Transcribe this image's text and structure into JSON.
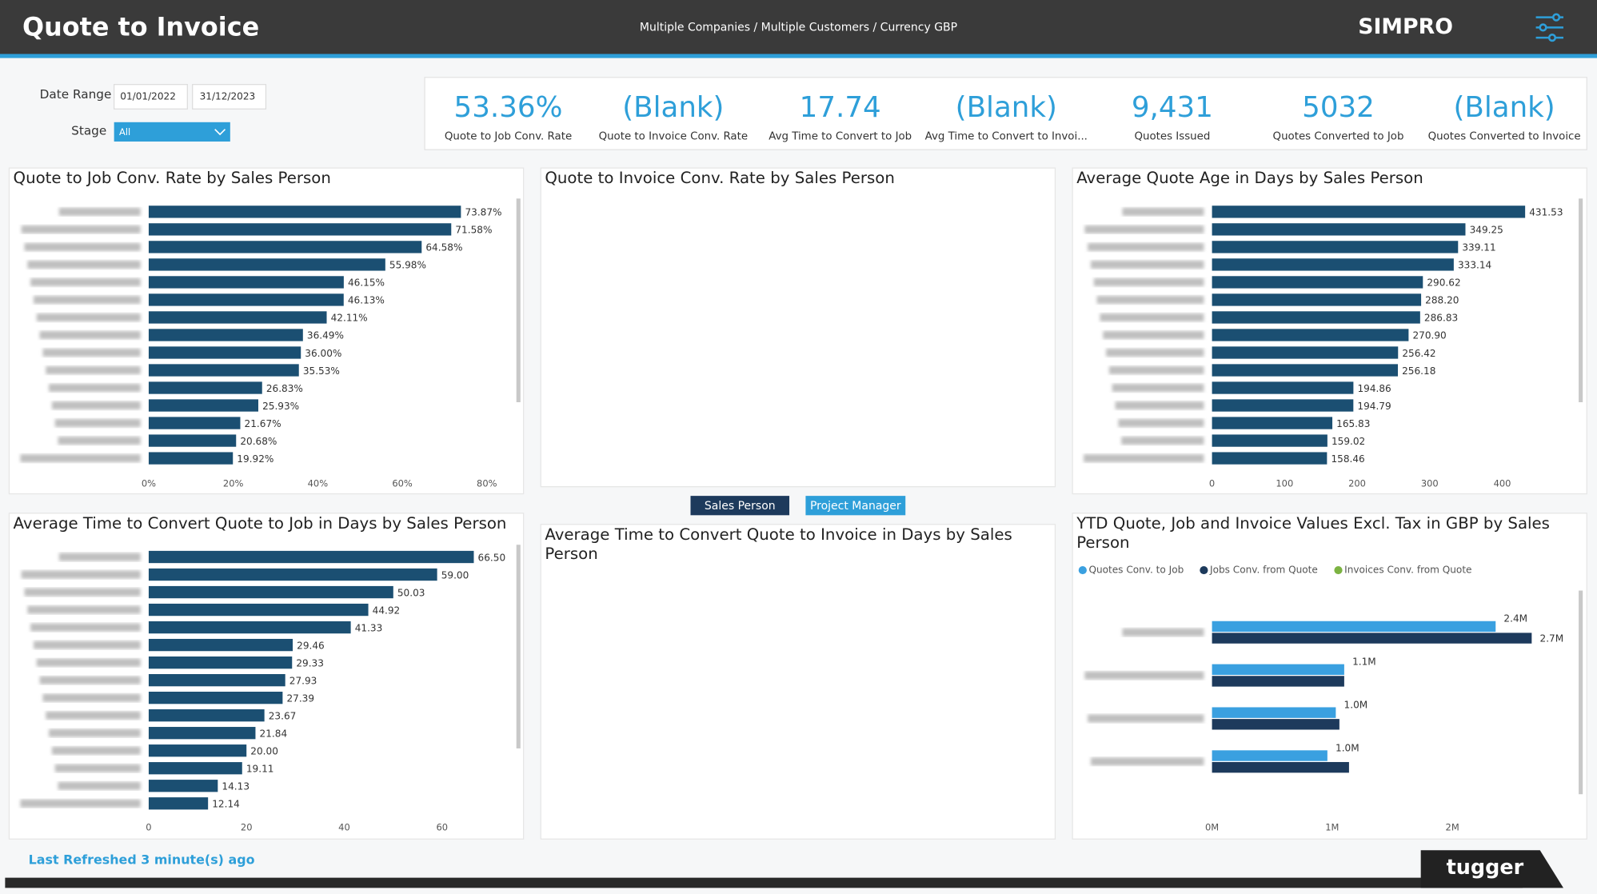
{
  "header": {
    "title": "Quote to Invoice",
    "context": "Multiple Companies / Multiple Customers /  Currency GBP",
    "brand": "SIMPRO"
  },
  "filters": {
    "date_label": "Date Range",
    "date_from": "01/01/2022",
    "date_to": "31/12/2023",
    "stage_label": "Stage",
    "stage_value": "All"
  },
  "kpis": [
    {
      "value": "53.36%",
      "label": "Quote to Job Conv. Rate"
    },
    {
      "value": "(Blank)",
      "label": "Quote to Invoice Conv. Rate"
    },
    {
      "value": "17.74",
      "label": "Avg Time to Convert to Job"
    },
    {
      "value": "(Blank)",
      "label": "Avg Time to Convert to Invoi..."
    },
    {
      "value": "9,431",
      "label": "Quotes Issued"
    },
    {
      "value": "5032",
      "label": "Quotes Converted to Job"
    },
    {
      "value": "(Blank)",
      "label": "Quotes Converted to Invoice"
    }
  ],
  "chart_data": [
    {
      "type": "barh",
      "title": "Quote to Job Conv. Rate by Sales Person",
      "color": "#1b4f72",
      "categories": [
        null,
        null,
        null,
        null,
        null,
        null,
        null,
        null,
        null,
        null,
        null,
        null,
        null,
        null,
        null
      ],
      "values": [
        73.87,
        71.58,
        64.58,
        55.98,
        46.15,
        46.13,
        42.11,
        36.49,
        36.0,
        35.53,
        26.83,
        25.93,
        21.67,
        20.68,
        19.92
      ],
      "value_labels": [
        "73.87%",
        "71.58%",
        "64.58%",
        "55.98%",
        "46.15%",
        "46.13%",
        "42.11%",
        "36.49%",
        "36.00%",
        "35.53%",
        "26.83%",
        "25.93%",
        "21.67%",
        "20.68%",
        "19.92%"
      ],
      "xlim": [
        0,
        85
      ],
      "xticks": [
        {
          "value": 0,
          "label": "0%"
        },
        {
          "value": 20,
          "label": "20%"
        },
        {
          "value": 40,
          "label": "40%"
        },
        {
          "value": 60,
          "label": "60%"
        },
        {
          "value": 80,
          "label": "80%"
        }
      ]
    },
    {
      "type": "barh",
      "title": "Quote to Invoice Conv. Rate by Sales Person"
    },
    {
      "type": "barh",
      "title": "Average Quote Age in Days by Sales Person",
      "color": "#1b4f72",
      "categories": [
        null,
        null,
        null,
        null,
        null,
        null,
        null,
        null,
        null,
        null,
        null,
        null,
        null,
        null,
        null
      ],
      "values": [
        431.53,
        349.25,
        339.11,
        333.14,
        290.62,
        288.2,
        286.83,
        270.9,
        256.42,
        256.18,
        194.86,
        194.79,
        165.83,
        159.02,
        158.46
      ],
      "value_labels": [
        "431.53",
        "349.25",
        "339.11",
        "333.14",
        "290.62",
        "288.20",
        "286.83",
        "270.90",
        "256.42",
        "256.18",
        "194.86",
        "194.79",
        "165.83",
        "159.02",
        "158.46"
      ],
      "xlim": [
        0,
        490
      ],
      "xticks": [
        0,
        100,
        200,
        300,
        400
      ]
    },
    {
      "type": "barh",
      "title": "Average Time to Convert Quote to Job in Days by Sales Person",
      "color": "#1b4f72",
      "categories": [
        null,
        null,
        null,
        null,
        null,
        null,
        null,
        null,
        null,
        null,
        null,
        null,
        null,
        null,
        null
      ],
      "values": [
        66.5,
        59.0,
        50.03,
        44.92,
        41.33,
        29.46,
        29.33,
        27.93,
        27.39,
        23.67,
        21.84,
        20.0,
        19.11,
        14.13,
        12.14
      ],
      "value_labels": [
        "66.50",
        "59.00",
        "50.03",
        "44.92",
        "41.33",
        "29.46",
        "29.33",
        "27.93",
        "27.39",
        "23.67",
        "21.84",
        "20.00",
        "19.11",
        "14.13",
        "12.14"
      ],
      "xlim": [
        0,
        74
      ],
      "xticks": [
        0,
        20,
        40,
        60
      ]
    },
    {
      "type": "barh",
      "title": "Average Time to Convert Quote to Invoice in Days by Sales Person"
    },
    {
      "type": "barh",
      "title": "YTD Quote, Job and Invoice Values Excl. Tax in GBP by Sales Person",
      "categories": [
        null,
        null,
        null,
        null
      ],
      "series": [
        {
          "name": "Quotes Conv. to Job",
          "color": "#3aa0e0",
          "values": [
            2.36,
            1.1,
            1.03,
            0.96
          ],
          "value_labels": [
            "2.4M",
            "1.1M",
            "1.0M",
            "1.0M"
          ]
        },
        {
          "name": "Jobs Conv. from Quote",
          "color": "#1d3a5c",
          "values": [
            2.66,
            1.1,
            1.06,
            1.14
          ],
          "value_labels": [
            "2.7M",
            null,
            null,
            null
          ]
        },
        {
          "name": "Invoices Conv. from Quote",
          "color": "#7cb342",
          "values": [
            null,
            null,
            null,
            null
          ]
        }
      ],
      "xlim": [
        0,
        3
      ],
      "xticks": [
        {
          "value": 0,
          "label": "0M"
        },
        {
          "value": 1,
          "label": "1M"
        },
        {
          "value": 2,
          "label": "2M"
        }
      ]
    }
  ],
  "buttons": [
    "Sales Person",
    "Project Manager"
  ],
  "footer": {
    "refreshed": "Last Refreshed 3 minute(s) ago",
    "brand": "tugger"
  }
}
